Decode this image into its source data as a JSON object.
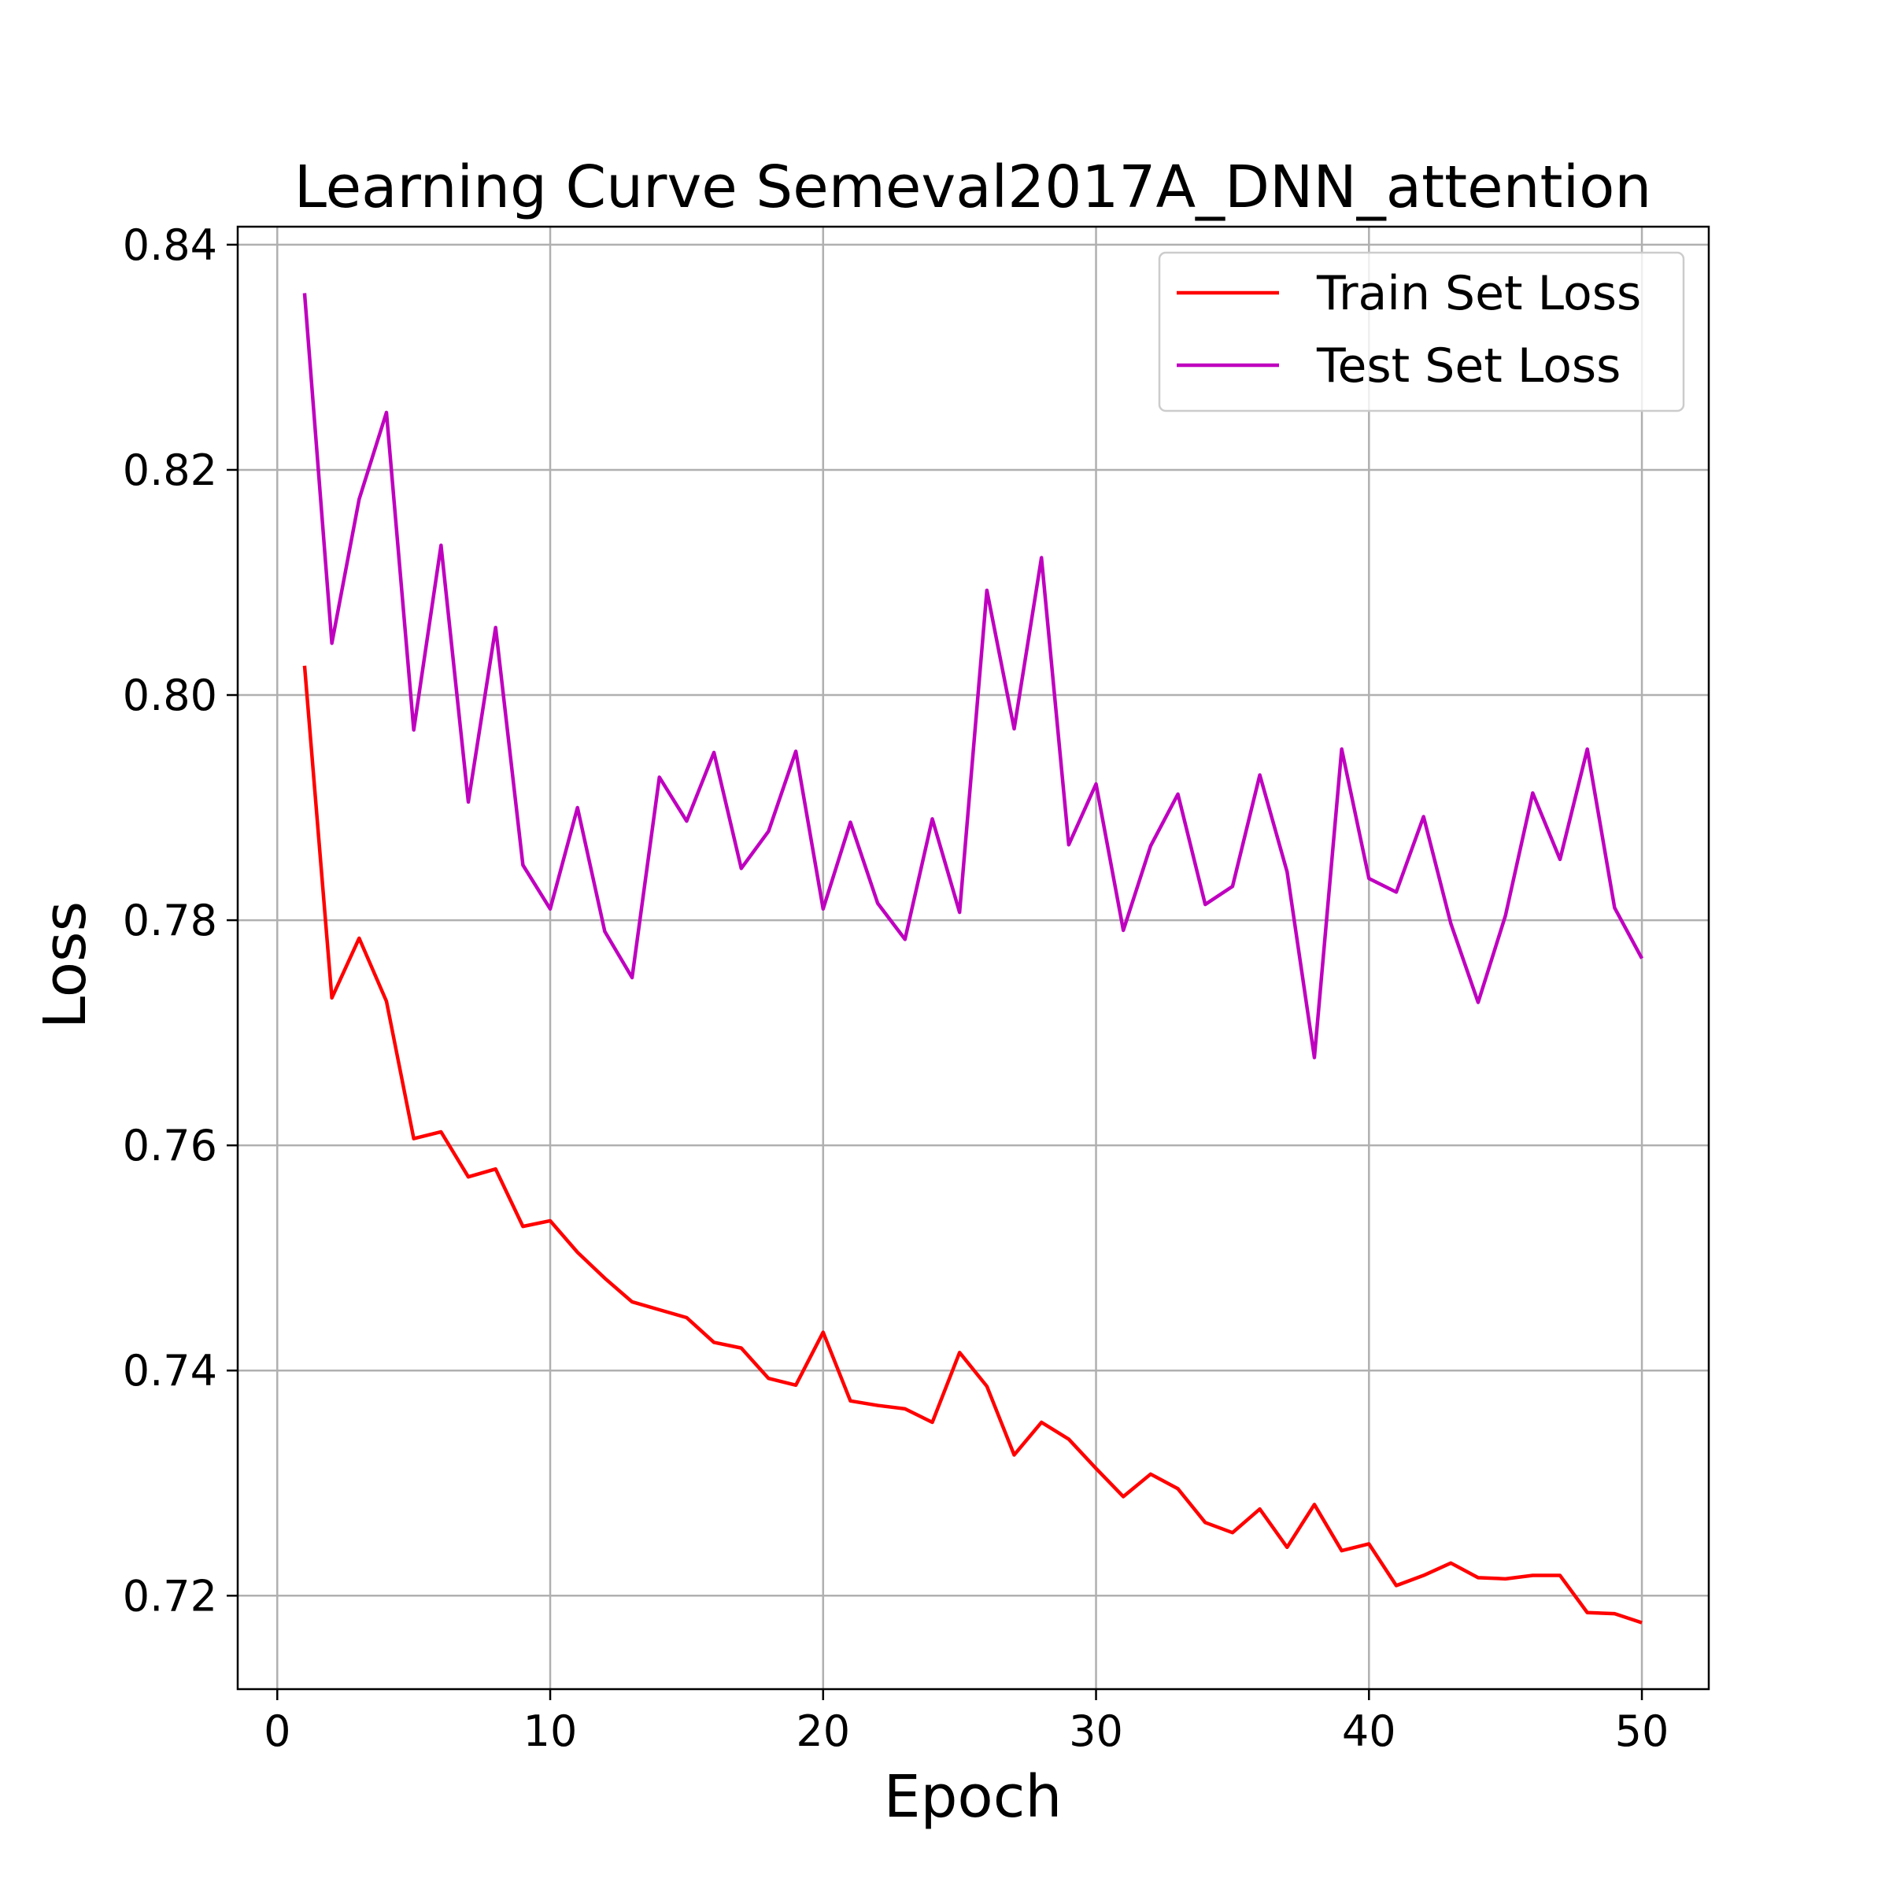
{
  "chart_data": {
    "type": "line",
    "title": "Learning Curve Semeval2017A_DNN_attention",
    "xlabel": "Epoch",
    "ylabel": "Loss",
    "xlim": [
      -1.45,
      52.45
    ],
    "ylim": [
      0.7117,
      0.8416
    ],
    "xticks": [
      0,
      10,
      20,
      30,
      40,
      50
    ],
    "yticks": [
      0.72,
      0.74,
      0.76,
      0.78,
      0.8,
      0.82,
      0.84
    ],
    "ytick_labels": [
      "0.72",
      "0.74",
      "0.76",
      "0.78",
      "0.80",
      "0.82",
      "0.84"
    ],
    "grid": true,
    "legend_position": "top-right",
    "x": [
      1,
      2,
      3,
      4,
      5,
      6,
      7,
      8,
      9,
      10,
      11,
      12,
      13,
      14,
      15,
      16,
      17,
      18,
      19,
      20,
      21,
      22,
      23,
      24,
      25,
      26,
      27,
      28,
      29,
      30,
      31,
      32,
      33,
      34,
      35,
      36,
      37,
      38,
      39,
      40,
      41,
      42,
      43,
      44,
      45,
      46,
      47,
      48,
      49,
      50
    ],
    "series": [
      {
        "name": "Train Set Loss",
        "color": "#ff0000",
        "values": [
          0.8026,
          0.7731,
          0.7784,
          0.7728,
          0.7606,
          0.7612,
          0.7572,
          0.7579,
          0.7528,
          0.7533,
          0.7505,
          0.7482,
          0.7461,
          0.7454,
          0.7447,
          0.7425,
          0.742,
          0.7393,
          0.7387,
          0.7434,
          0.7373,
          0.7369,
          0.7366,
          0.7354,
          0.7416,
          0.7386,
          0.7325,
          0.7354,
          0.7339,
          0.7313,
          0.7288,
          0.7308,
          0.7295,
          0.7265,
          0.7256,
          0.7277,
          0.7243,
          0.7281,
          0.724,
          0.7246,
          0.7209,
          0.7218,
          0.7229,
          0.7216,
          0.7215,
          0.7218,
          0.7218,
          0.7185,
          0.7184,
          0.7176
        ]
      },
      {
        "name": "Test Set Loss",
        "color": "#bf00bf",
        "values": [
          0.8357,
          0.8046,
          0.8174,
          0.8251,
          0.7969,
          0.8133,
          0.7905,
          0.806,
          0.7849,
          0.781,
          0.79,
          0.779,
          0.7749,
          0.7927,
          0.7888,
          0.7949,
          0.7846,
          0.7879,
          0.795,
          0.781,
          0.7887,
          0.7815,
          0.7783,
          0.789,
          0.7807,
          0.8093,
          0.797,
          0.8122,
          0.7867,
          0.7921,
          0.7791,
          0.7866,
          0.7912,
          0.7814,
          0.783,
          0.7929,
          0.7843,
          0.7678,
          0.7952,
          0.7837,
          0.7825,
          0.7892,
          0.7797,
          0.7727,
          0.7804,
          0.7913,
          0.7854,
          0.7952,
          0.7811,
          0.7766
        ]
      }
    ]
  }
}
